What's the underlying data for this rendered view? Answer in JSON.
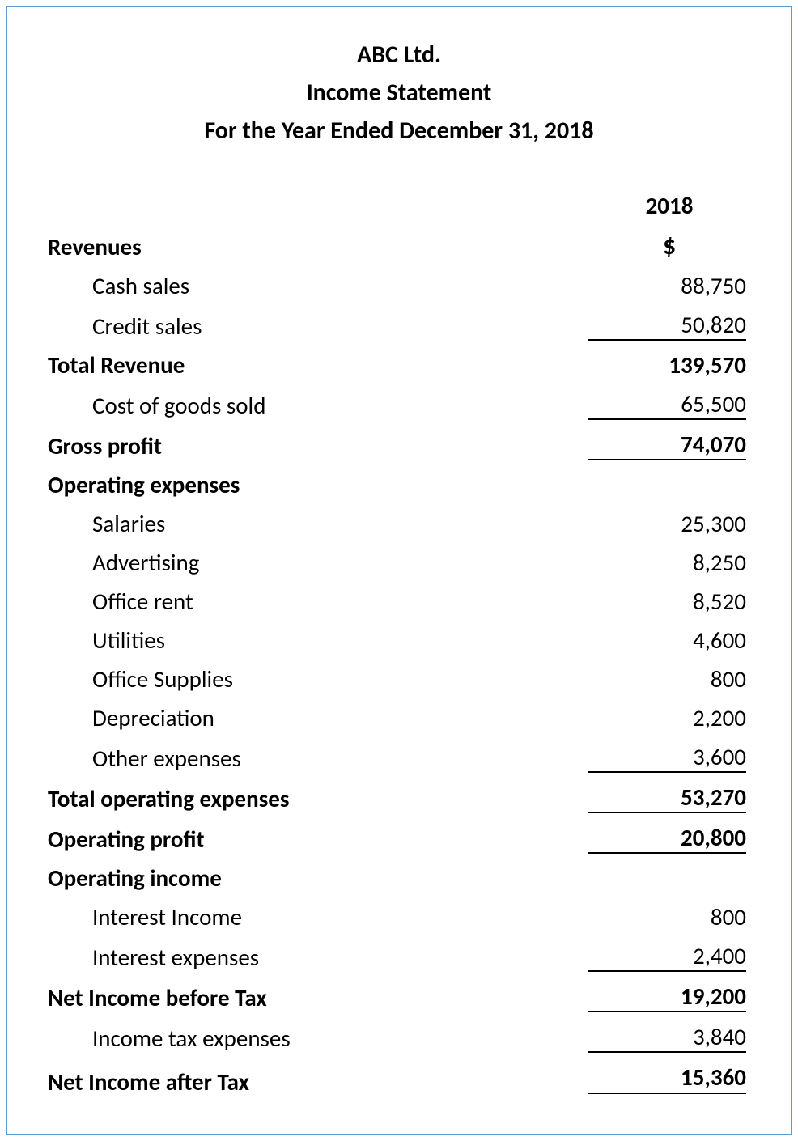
{
  "header": {
    "company": "ABC Ltd.",
    "title": "Income Statement",
    "period": "For the Year Ended December 31, 2018"
  },
  "columns": {
    "year": "2018",
    "currency": "$"
  },
  "sections": {
    "revenues_label": "Revenues",
    "cash_sales": {
      "label": "Cash sales",
      "value": "88,750"
    },
    "credit_sales": {
      "label": "Credit sales",
      "value": "50,820"
    },
    "total_revenue": {
      "label": "Total Revenue",
      "value": "139,570"
    },
    "cogs": {
      "label": "Cost of goods sold",
      "value": "65,500"
    },
    "gross_profit": {
      "label": "Gross profit",
      "value": "74,070"
    },
    "operating_expenses_label": "Operating expenses",
    "salaries": {
      "label": "Salaries",
      "value": "25,300"
    },
    "advertising": {
      "label": "Advertising",
      "value": "8,250"
    },
    "office_rent": {
      "label": "Office rent",
      "value": "8,520"
    },
    "utilities": {
      "label": "Utilities",
      "value": "4,600"
    },
    "office_supplies": {
      "label": "Office Supplies",
      "value": "800"
    },
    "depreciation": {
      "label": "Depreciation",
      "value": "2,200"
    },
    "other_expenses": {
      "label": "Other expenses",
      "value": "3,600"
    },
    "total_operating_expenses": {
      "label": "Total operating expenses",
      "value": "53,270"
    },
    "operating_profit": {
      "label": "Operating profit",
      "value": "20,800"
    },
    "operating_income_label": "Operating income",
    "interest_income": {
      "label": "Interest Income",
      "value": "800"
    },
    "interest_expenses": {
      "label": "Interest expenses",
      "value": "2,400"
    },
    "net_income_before_tax": {
      "label": "Net Income before Tax",
      "value": "19,200"
    },
    "income_tax_expenses": {
      "label": "Income tax expenses",
      "value": "3,840"
    },
    "net_income_after_tax": {
      "label": "Net Income after Tax",
      "value": "15,360"
    }
  },
  "styling": {
    "border_color": "#5b9bd5",
    "text_color": "#000000",
    "background_color": "#ffffff",
    "font_family": "Calibri",
    "header_fontsize": 30,
    "body_fontsize": 29,
    "underline_color": "#000000"
  }
}
